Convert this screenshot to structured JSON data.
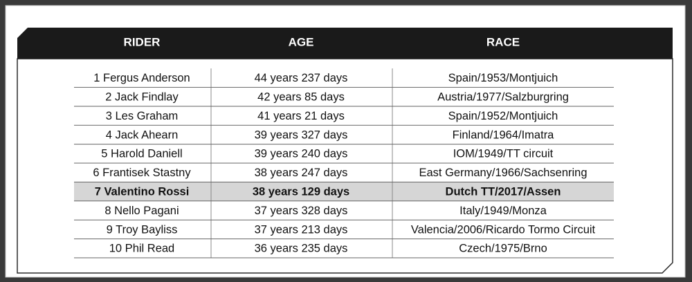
{
  "header": {
    "columns": [
      "RIDER",
      "AGE",
      "RACE"
    ]
  },
  "table": {
    "highlighted_row": 6,
    "rows": [
      [
        "1 Fergus Anderson",
        "44 years 237 days",
        "Spain/1953/Montjuich"
      ],
      [
        "2 Jack Findlay",
        "42 years 85 days",
        "Austria/1977/Salzburgring"
      ],
      [
        "3 Les Graham",
        "41 years 21 days",
        "Spain/1952/Montjuich"
      ],
      [
        "4 Jack Ahearn",
        "39 years 327 days",
        "Finland/1964/Imatra"
      ],
      [
        "5 Harold Daniell",
        "39 years 240 days",
        "IOM/1949/TT circuit"
      ],
      [
        "6 Frantisek Stastny",
        "38 years 247 days",
        "East Germany/1966/Sachsenring"
      ],
      [
        "7 Valentino Rossi",
        "38 years 129 days",
        "Dutch TT/2017/Assen"
      ],
      [
        "8 Nello Pagani",
        "37 years 328 days",
        "Italy/1949/Monza"
      ],
      [
        "9 Troy Bayliss",
        "37 years 213 days",
        "Valencia/2006/Ricardo Tormo Circuit"
      ],
      [
        "10 Phil Read",
        "36 years 235 days",
        "Czech/1975/Brno"
      ]
    ]
  }
}
